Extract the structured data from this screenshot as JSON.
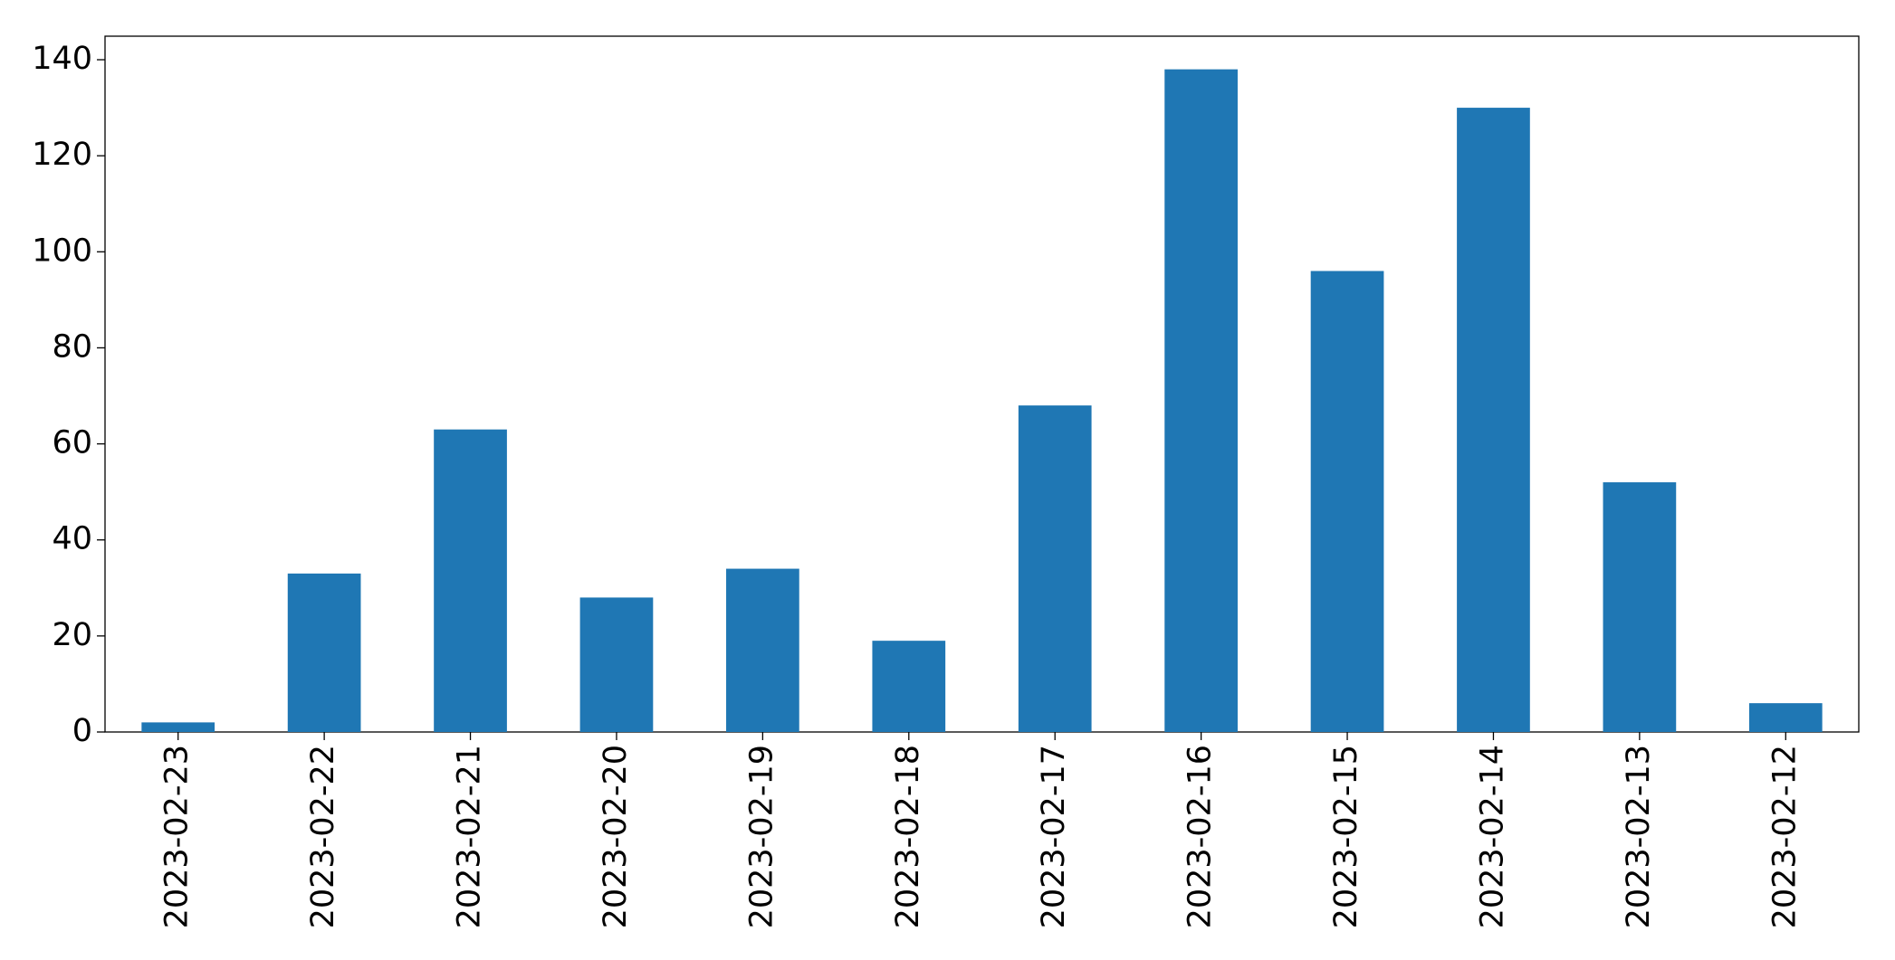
{
  "chart_data": {
    "type": "bar",
    "categories": [
      "2023-02-23",
      "2023-02-22",
      "2023-02-21",
      "2023-02-20",
      "2023-02-19",
      "2023-02-18",
      "2023-02-17",
      "2023-02-16",
      "2023-02-15",
      "2023-02-14",
      "2023-02-13",
      "2023-02-12"
    ],
    "values": [
      2,
      33,
      63,
      28,
      34,
      19,
      68,
      138,
      96,
      130,
      52,
      6
    ],
    "color": "#1f77b4",
    "ylim": [
      0,
      144.9
    ],
    "yticks": [
      0,
      20,
      40,
      60,
      80,
      100,
      120,
      140
    ],
    "grid": false
  }
}
